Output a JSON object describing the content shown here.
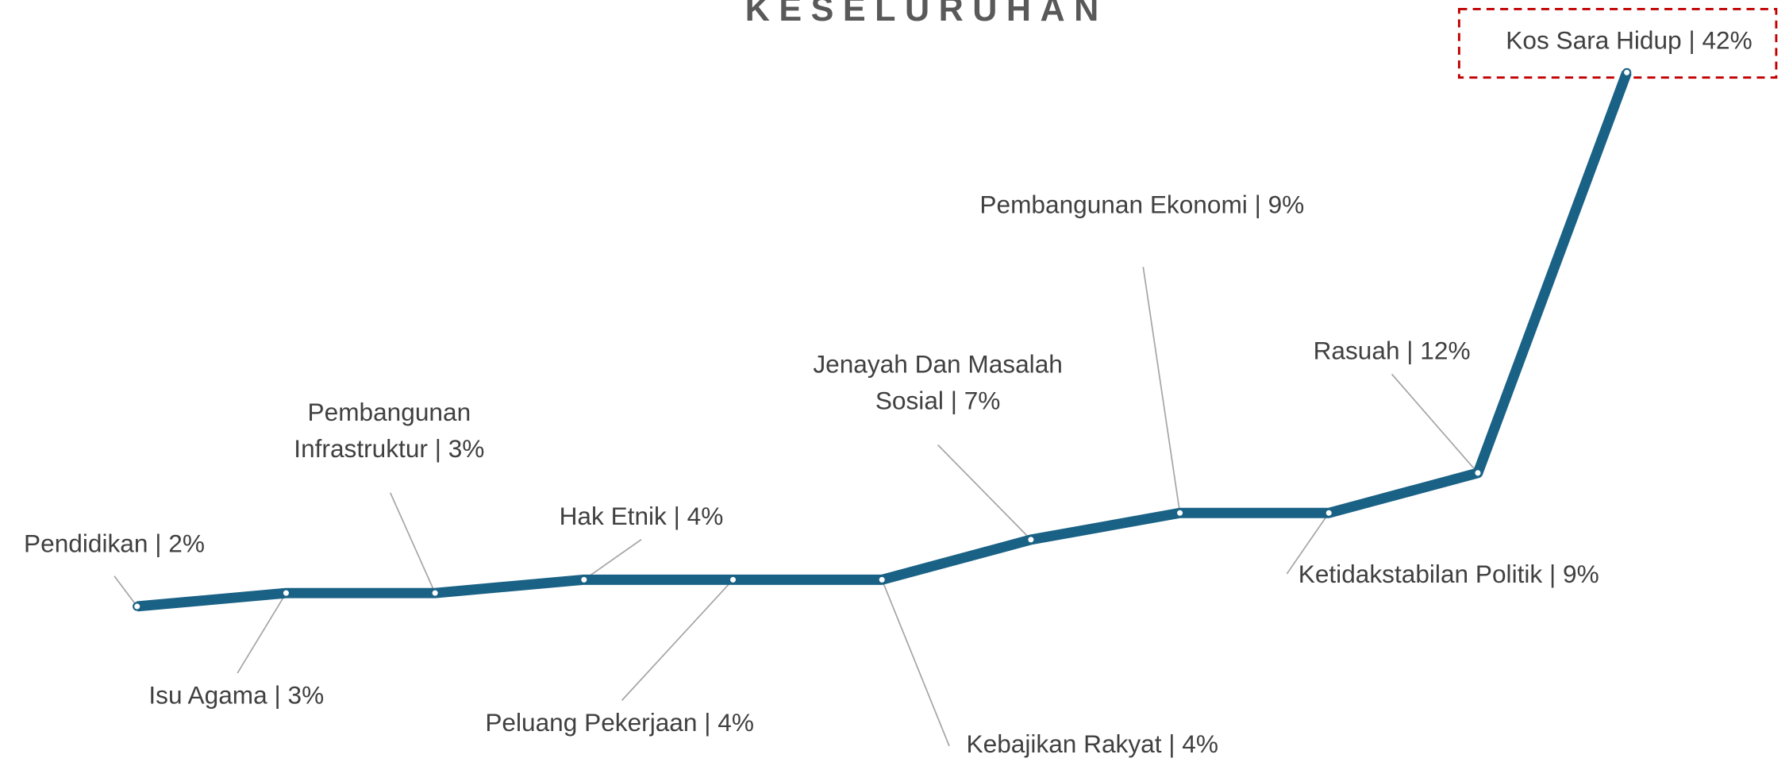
{
  "chart_data": {
    "type": "line",
    "title": "KESELURUHAN",
    "values": [
      2,
      3,
      3,
      4,
      4,
      4,
      7,
      9,
      9,
      12,
      42
    ],
    "value_labels": [
      [
        "Pendidikan  | 2%"
      ],
      [
        "Isu Agama | 3%"
      ],
      [
        "Pembangunan",
        "Infrastruktur | 3%"
      ],
      [
        "Hak Etnik | 4%"
      ],
      [
        "Peluang Pekerjaan  | 4%"
      ],
      [
        "Kebajikan Rakyat  | 4%"
      ],
      [
        "Jenayah Dan Masalah",
        "Sosial | 7%"
      ],
      [
        "Pembangunan Ekonomi | 9%"
      ],
      [
        "Ketidakstabilan Politik | 9%"
      ],
      [
        "Rasuah | 12%"
      ],
      [
        "Kos Sara Hidup | 42%"
      ]
    ],
    "color": "#1a6285"
  }
}
